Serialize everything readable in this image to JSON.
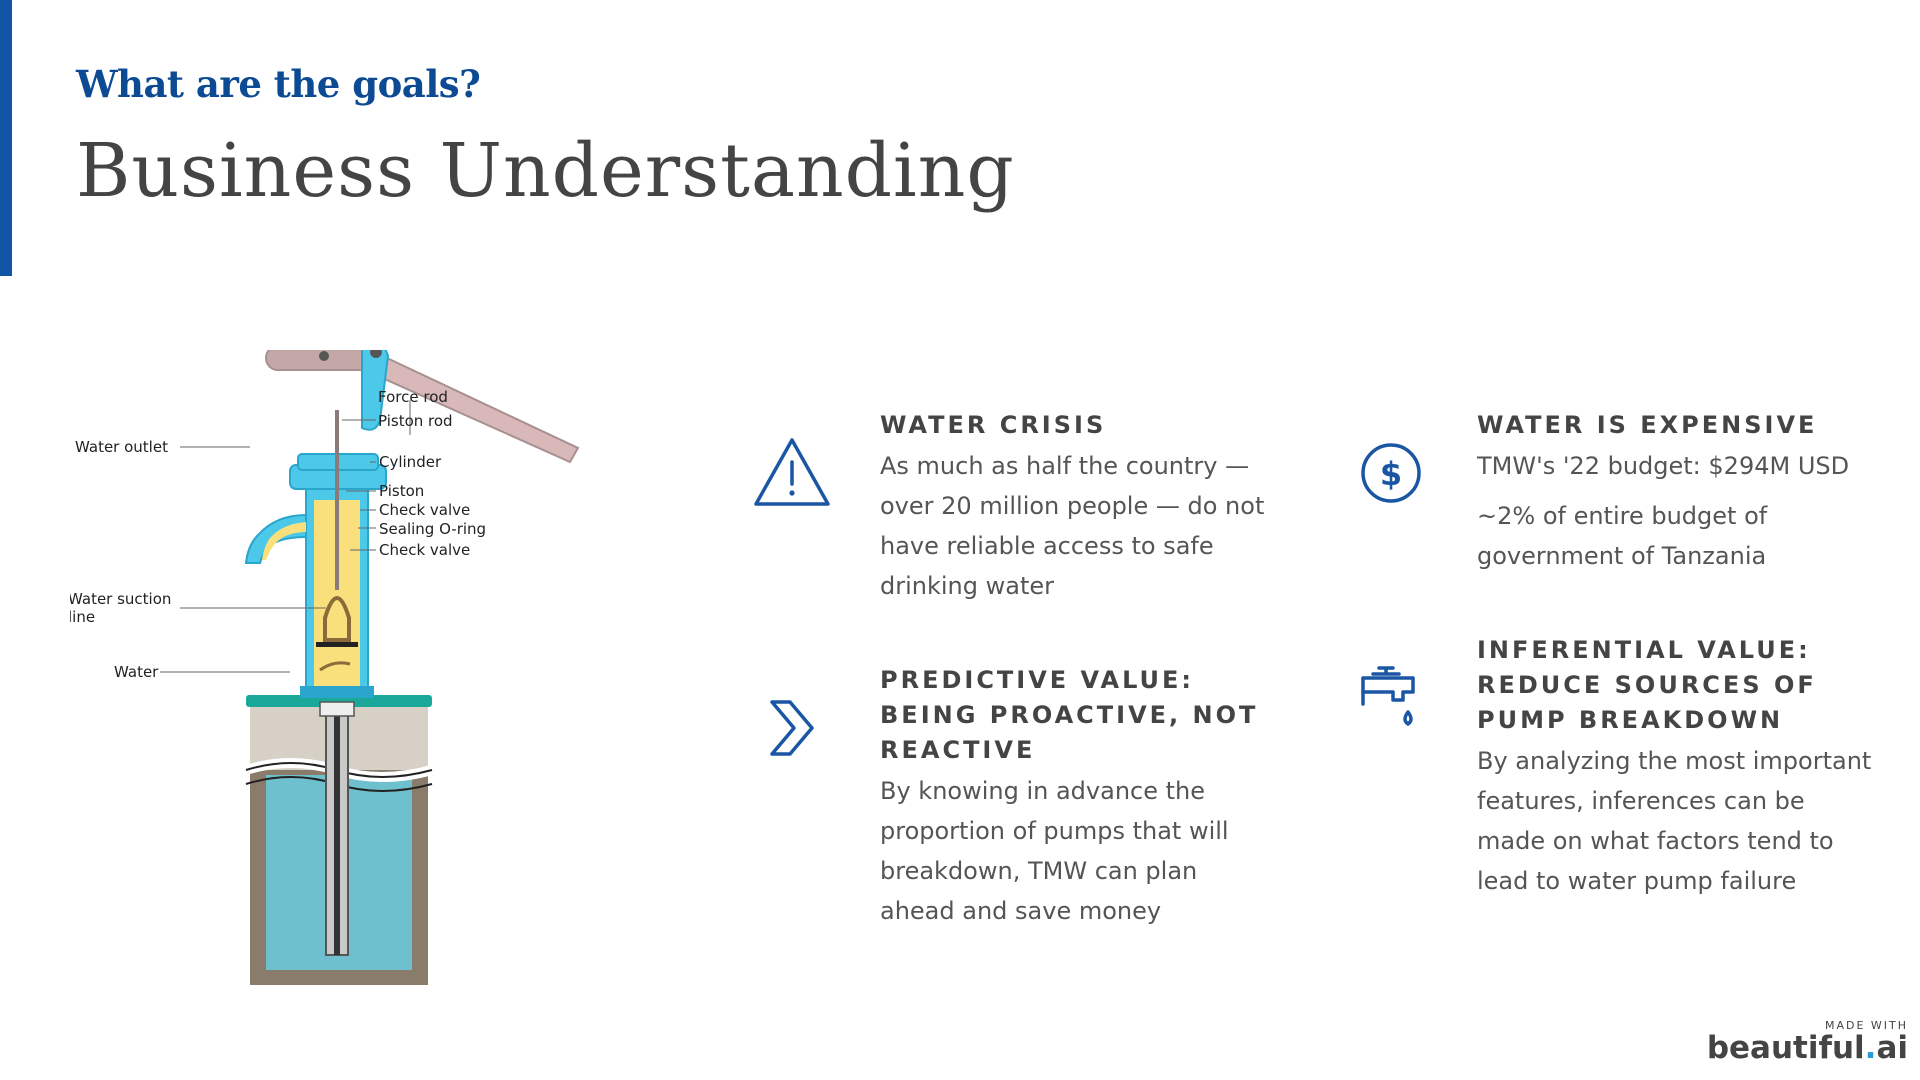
{
  "header": {
    "subtitle": "What are the goals?",
    "title": "Business Understanding"
  },
  "diagram": {
    "labels": {
      "force_rod": "Force rod",
      "piston_rod": "Piston rod",
      "water_outlet": "Water outlet",
      "cylinder": "Cylinder",
      "piston": "Piston",
      "check_valve_1": "Check valve",
      "sealing_o_ring": "Sealing O-ring",
      "check_valve_2": "Check valve",
      "water_suction_line_1": "Water suction",
      "water_suction_line_2": "line",
      "water": "Water"
    }
  },
  "cards": [
    {
      "icon": "warning-triangle-icon",
      "heading": "WATER CRISIS",
      "body": [
        "As much as half the country — over 20 million people — do not have reliable access to safe drinking water"
      ]
    },
    {
      "icon": "chevron-right-icon",
      "heading": "PREDICTIVE VALUE: BEING PROACTIVE, NOT REACTIVE",
      "body": [
        "By knowing in advance the proportion of pumps that will breakdown, TMW can plan ahead and save money"
      ]
    },
    {
      "icon": "dollar-coin-icon",
      "heading": "WATER IS EXPENSIVE",
      "body": [
        "TMW's '22 budget: $294M USD",
        "~2% of entire budget of government of Tanzania"
      ]
    },
    {
      "icon": "dripping-faucet-icon",
      "heading": "INFERENTIAL VALUE: REDUCE SOURCES OF PUMP BREAKDOWN",
      "body": [
        "By analyzing the most important features, inferences can be made on what factors tend to lead to water pump failure"
      ]
    }
  ],
  "footer": {
    "made_with": "MADE WITH",
    "brand_name": "beautiful",
    "brand_dot": ".",
    "brand_suffix": "ai"
  },
  "colors": {
    "accent": "#1155a6",
    "subtitle": "#0c4a93",
    "icon": "#1a56a4"
  }
}
